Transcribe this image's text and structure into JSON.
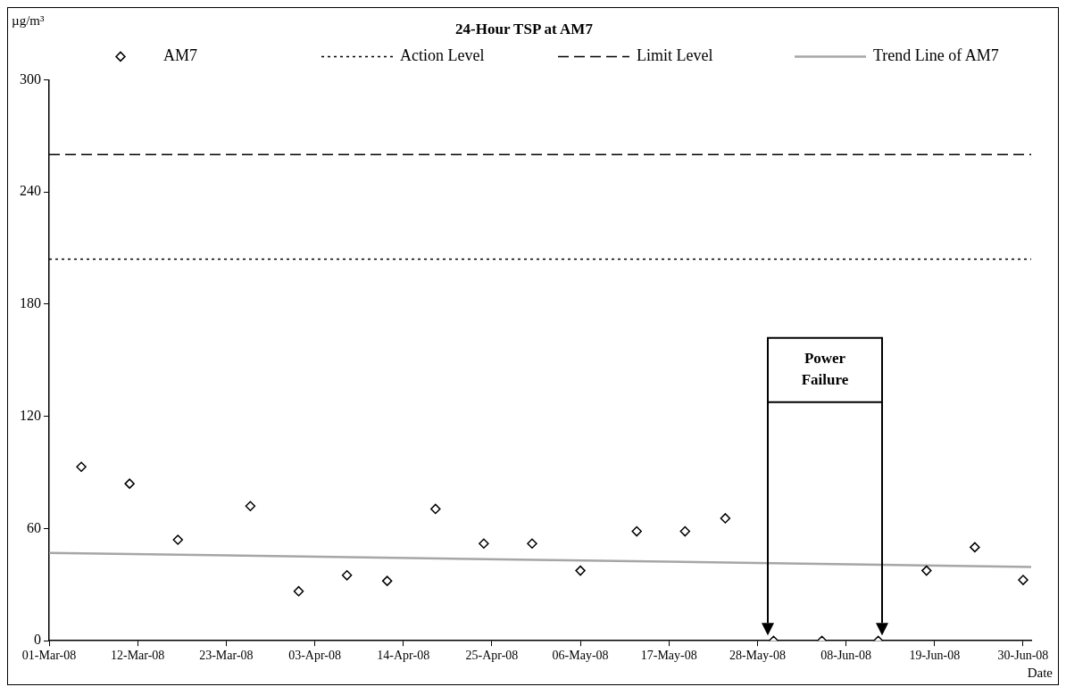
{
  "chart_data": {
    "type": "scatter",
    "title": "24-Hour TSP at AM7",
    "ylabel": "µg/m³",
    "xlabel": "Date",
    "x": [
      "--03-05",
      "--03-11",
      "--03-17",
      "--03-26",
      "--04-01",
      "--04-07",
      "--04-12",
      "--04-18",
      "--04-24",
      "--04-30",
      "--05-06",
      "--05-13",
      "--05-19",
      "--05-24",
      "--05-30",
      "--06-05",
      "--06-12",
      "--06-18",
      "--06-24",
      "--06-30"
    ],
    "series": [
      {
        "name": "AM7",
        "color": "#000000",
        "marker": "diamond",
        "values": [
          93,
          84,
          54,
          72,
          26.5,
          35,
          32,
          70.5,
          52,
          52,
          37.5,
          58.5,
          58.5,
          65.5,
          0,
          0,
          0,
          37.5,
          50,
          32.5
        ]
      },
      {
        "name": "Trend Line of AM7",
        "type": "line",
        "color": "#a6a6a6",
        "x": [
          "--03-01",
          "--07-01"
        ],
        "values": [
          47,
          39.5
        ]
      }
    ],
    "ref_lines": [
      {
        "axis": "y",
        "value": 204,
        "label": "Action Level",
        "line_style": "dotted",
        "color": "#000000"
      },
      {
        "axis": "y",
        "value": 260,
        "label": "Limit Level",
        "line_style": "dashed",
        "color": "#000000"
      }
    ],
    "annotations": [
      "Power Failure"
    ],
    "xlim": [
      "--03-01",
      "--07-01"
    ],
    "xticks": [
      {
        "value": "--03-01",
        "label": "01-Mar-08"
      },
      {
        "value": "--03-12",
        "label": "12-Mar-08"
      },
      {
        "value": "--03-23",
        "label": "23-Mar-08"
      },
      {
        "value": "--04-03",
        "label": "03-Apr-08"
      },
      {
        "value": "--04-14",
        "label": "14-Apr-08"
      },
      {
        "value": "--04-25",
        "label": "25-Apr-08"
      },
      {
        "value": "--05-06",
        "label": "06-May-08"
      },
      {
        "value": "--05-17",
        "label": "17-May-08"
      },
      {
        "value": "--05-28",
        "label": "28-May-08"
      },
      {
        "value": "--06-08",
        "label": "08-Jun-08"
      },
      {
        "value": "--06-19",
        "label": "19-Jun-08"
      },
      {
        "value": "--06-30",
        "label": "30-Jun-08"
      }
    ],
    "ylim": [
      0,
      300
    ],
    "yticks": [
      0,
      60,
      120,
      180,
      240,
      300
    ],
    "grid": false,
    "legend": "top"
  }
}
